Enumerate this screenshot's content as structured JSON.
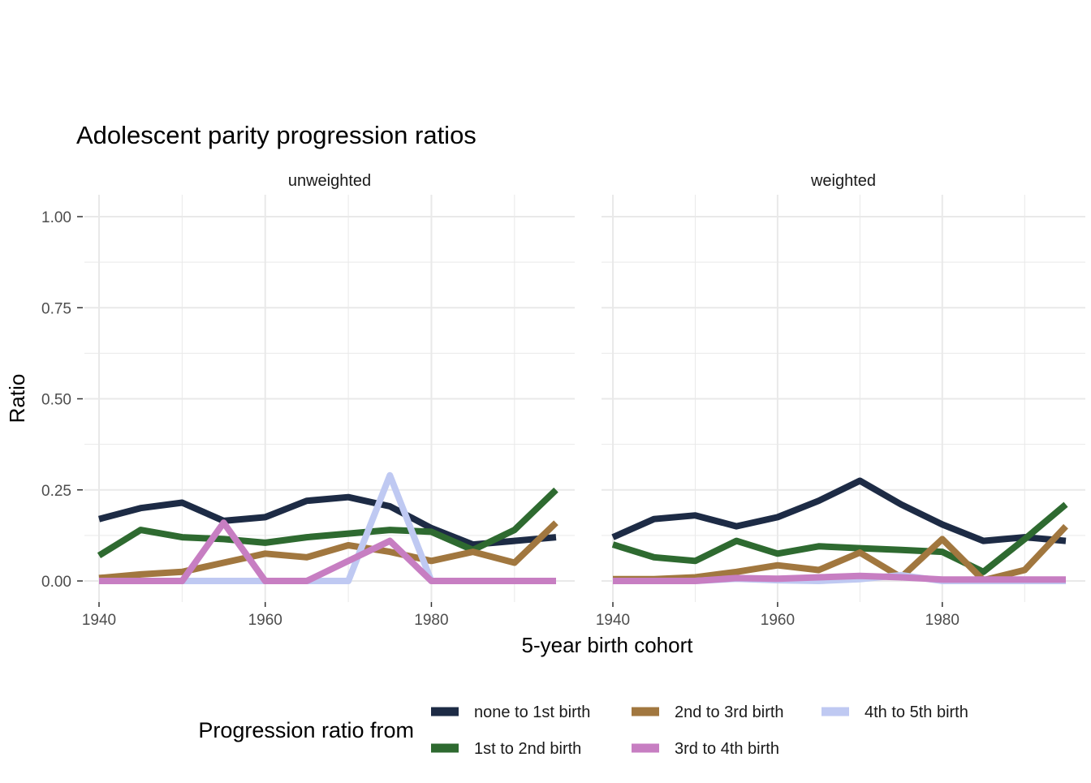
{
  "colors": {
    "background": "#ffffff",
    "grid": "#e9e9e9",
    "axis_tick": "#333333",
    "tick_label": "#4d4d4d",
    "text": "#000000",
    "facet_label": "#1a1a1a",
    "legend_label": "#1a1a1a"
  },
  "chart_data": {
    "type": "line",
    "title": "Adolescent parity progression ratios",
    "xlabel": "5-year birth cohort",
    "ylabel": "Ratio",
    "legend_title": "Progression ratio from",
    "legend_position": "bottom",
    "grid": true,
    "x": [
      1940,
      1945,
      1950,
      1955,
      1960,
      1965,
      1970,
      1975,
      1980,
      1985,
      1990,
      1995
    ],
    "x_ticks": [
      1940,
      1960,
      1980
    ],
    "x_tick_labels": [
      "1940",
      "1960",
      "1980"
    ],
    "x_minor": [
      1950,
      1970,
      1990
    ],
    "y_ticks": [
      0,
      0.25,
      0.5,
      0.75,
      1
    ],
    "y_tick_labels": [
      "0.00",
      "0.25",
      "0.50",
      "0.75",
      "1.00"
    ],
    "y_minor": [
      0.125,
      0.375,
      0.625,
      0.875
    ],
    "ylim": [
      0,
      1
    ],
    "legend": [
      {
        "name": "none to 1st birth",
        "color": "#1d2b45"
      },
      {
        "name": "1st to 2nd birth",
        "color": "#2e6a30"
      },
      {
        "name": "2nd to 3rd birth",
        "color": "#a1773f"
      },
      {
        "name": "3rd to 4th birth",
        "color": "#c77ec2"
      },
      {
        "name": "4th to 5th birth",
        "color": "#bfc9f2"
      }
    ],
    "facets": [
      {
        "label": "unweighted",
        "series": [
          {
            "name": "none to 1st birth",
            "color": "#1d2b45",
            "values": [
              0.17,
              0.2,
              0.215,
              0.165,
              0.175,
              0.22,
              0.23,
              0.205,
              0.145,
              0.1,
              0.11,
              0.12
            ]
          },
          {
            "name": "1st to 2nd birth",
            "color": "#2e6a30",
            "values": [
              0.07,
              0.14,
              0.12,
              0.115,
              0.105,
              0.12,
              0.13,
              0.14,
              0.135,
              0.085,
              0.14,
              0.25
            ]
          },
          {
            "name": "2nd to 3rd birth",
            "color": "#a1773f",
            "values": [
              0.008,
              0.018,
              0.025,
              0.05,
              0.075,
              0.065,
              0.098,
              0.08,
              0.055,
              0.08,
              0.05,
              0.16
            ]
          },
          {
            "name": "3rd to 4th birth",
            "color": "#c77ec2",
            "values": [
              0,
              0,
              0,
              0.16,
              0,
              0,
              0.055,
              0.11,
              0,
              0,
              0,
              0
            ]
          },
          {
            "name": "4th to 5th birth",
            "color": "#bfc9f2",
            "values": [
              null,
              null,
              0,
              0,
              0,
              0,
              0,
              0.29,
              0,
              0,
              0,
              0
            ]
          }
        ]
      },
      {
        "label": "weighted",
        "series": [
          {
            "name": "none to 1st birth",
            "color": "#1d2b45",
            "values": [
              0.12,
              0.17,
              0.18,
              0.15,
              0.175,
              0.22,
              0.275,
              0.21,
              0.155,
              0.11,
              0.12,
              0.11
            ]
          },
          {
            "name": "1st to 2nd birth",
            "color": "#2e6a30",
            "values": [
              0.1,
              0.065,
              0.055,
              0.11,
              0.075,
              0.095,
              0.09,
              0.085,
              0.08,
              0.025,
              0.115,
              0.21
            ]
          },
          {
            "name": "2nd to 3rd birth",
            "color": "#a1773f",
            "values": [
              0.005,
              0.005,
              0.01,
              0.025,
              0.043,
              0.03,
              0.078,
              0.01,
              0.115,
              0.002,
              0.03,
              0.15
            ]
          },
          {
            "name": "3rd to 4th birth",
            "color": "#c77ec2",
            "values": [
              0,
              0,
              0,
              0.008,
              0.006,
              0.01,
              0.014,
              0.01,
              0.004,
              0.004,
              0.004,
              0.004
            ]
          },
          {
            "name": "4th to 5th birth",
            "color": "#bfc9f2",
            "values": [
              null,
              null,
              0,
              0.006,
              0.002,
              0,
              0.005,
              0.016,
              0,
              0,
              0,
              0
            ]
          }
        ]
      }
    ]
  }
}
